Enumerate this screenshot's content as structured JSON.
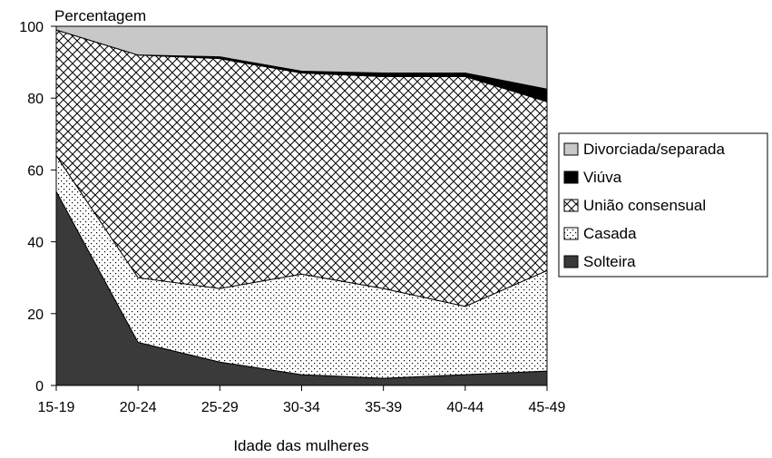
{
  "chart_data": {
    "type": "area",
    "stacked": true,
    "title": "",
    "xlabel": "Idade das mulheres",
    "ylabel": "Percentagem",
    "ylim": [
      0,
      100
    ],
    "yticks": [
      0,
      20,
      40,
      60,
      80,
      100
    ],
    "categories": [
      "15-19",
      "20-24",
      "25-29",
      "30-34",
      "35-39",
      "40-44",
      "45-49"
    ],
    "legend_position": "right",
    "series": [
      {
        "name": "Solteira",
        "pattern": "solid-dark",
        "color": "#3a3a3a",
        "values": [
          54,
          12,
          6.5,
          3,
          2,
          3,
          4
        ]
      },
      {
        "name": "Casada",
        "pattern": "dots",
        "color": "#000000",
        "values": [
          10,
          18,
          20.5,
          28,
          25,
          19,
          28
        ]
      },
      {
        "name": "União consensual",
        "pattern": "crosshatch",
        "color": "#000000",
        "values": [
          35,
          62,
          64,
          56,
          59,
          64,
          47
        ]
      },
      {
        "name": "Viúva",
        "pattern": "solid-black",
        "color": "#000000",
        "values": [
          0,
          0,
          0.5,
          0.5,
          1,
          1,
          3.5
        ]
      },
      {
        "name": "Divorciada/separada",
        "pattern": "solid-light",
        "color": "#c8c8c8",
        "values": [
          1,
          8,
          8.5,
          12.5,
          13,
          13,
          17.5
        ]
      }
    ],
    "legend_order": [
      "Divorciada/separada",
      "Viúva",
      "União consensual",
      "Casada",
      "Solteira"
    ]
  }
}
